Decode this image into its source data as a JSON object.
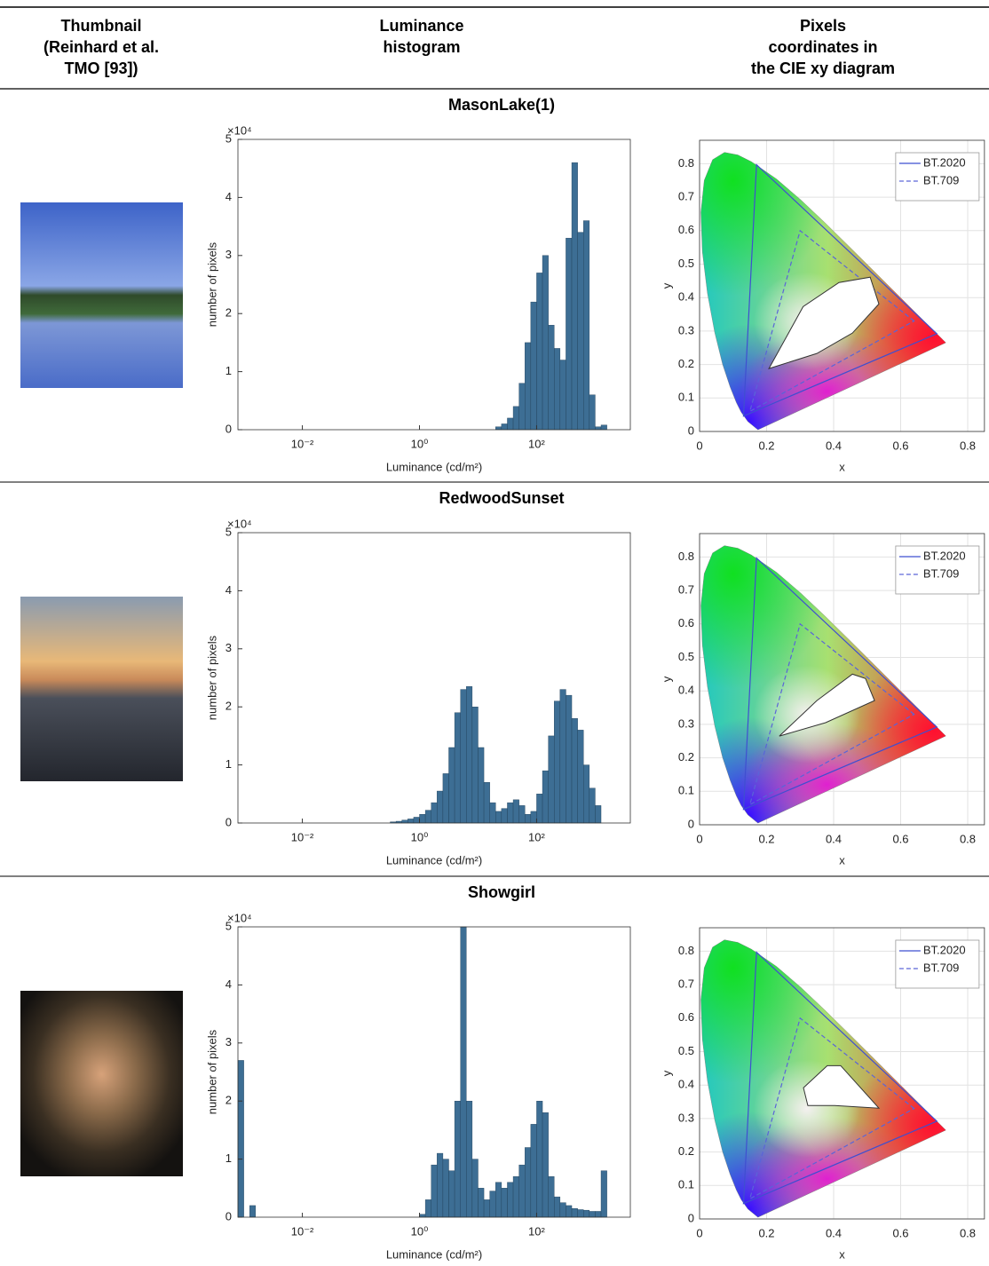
{
  "header": [
    [
      "Thumbnail",
      "(Reinhard et al.",
      "TMO [93])"
    ],
    [
      "Luminance",
      "histogram"
    ],
    [
      "Pixels",
      "coordinates in",
      "the CIE xy diagram"
    ]
  ],
  "rows": [
    {
      "title": "MasonLake(1)",
      "histogram": {
        "type": "histogram",
        "y_multiplier": "×10⁴",
        "xlabel": "Luminance (cd/m²)",
        "ylabel": "number of pixels",
        "log_x": true,
        "color": "#3d6e94",
        "bins": [
          19.95,
          25.12,
          31.62,
          39.81,
          50.12,
          63.1,
          79.43,
          100,
          125.9,
          158.5,
          199.5,
          251.2,
          316.2,
          398.1,
          501.2,
          631,
          794.3,
          1000,
          1259,
          1585
        ],
        "counts": [
          0.05,
          0.1,
          0.2,
          0.4,
          0.8,
          1.5,
          2.2,
          2.7,
          3.0,
          1.8,
          1.4,
          1.2,
          3.3,
          4.6,
          3.4,
          3.6,
          0.6,
          0.05,
          0.08
        ],
        "xlim": [
          0.000794,
          3981
        ],
        "ylim": [
          0,
          5
        ],
        "xticks": [
          {
            "value": 0.01,
            "label": "10⁻²"
          },
          {
            "value": 1,
            "label": "10⁰"
          },
          {
            "value": 100,
            "label": "10²"
          }
        ],
        "yticks": [
          0,
          1,
          2,
          3,
          4,
          5
        ]
      },
      "cie": {
        "type": "line",
        "xlabel": "x",
        "ylabel": "y",
        "xlim": [
          0,
          0.85
        ],
        "ylim": [
          0,
          0.87
        ],
        "xticks": [
          0,
          0.2,
          0.4,
          0.6,
          0.8
        ],
        "yticks": [
          0,
          0.1,
          0.2,
          0.3,
          0.4,
          0.5,
          0.6,
          0.7,
          0.8
        ],
        "grid": true,
        "legend": "upper right",
        "locus": {
          "x": [
            0.1741,
            0.144,
            0.1241,
            0.1096,
            0.0913,
            0.0687,
            0.0454,
            0.0235,
            0.0082,
            0.0039,
            0.0139,
            0.0389,
            0.0743,
            0.1142,
            0.1547,
            0.2296,
            0.3016,
            0.3731,
            0.4441,
            0.5125,
            0.5752,
            0.627,
            0.6915,
            0.726,
            0.7347
          ],
          "y": [
            0.005,
            0.0297,
            0.0578,
            0.0868,
            0.1327,
            0.2007,
            0.295,
            0.4127,
            0.5384,
            0.6548,
            0.7502,
            0.812,
            0.8338,
            0.8262,
            0.8059,
            0.7543,
            0.6923,
            0.6245,
            0.5547,
            0.4866,
            0.4242,
            0.3725,
            0.3083,
            0.274,
            0.2653
          ]
        },
        "pixels": {
          "x": [
            0.207,
            0.309,
            0.416,
            0.509,
            0.535,
            0.456,
            0.35
          ],
          "y": [
            0.188,
            0.373,
            0.445,
            0.461,
            0.381,
            0.294,
            0.233
          ]
        },
        "series": [
          {
            "name": "BT.2020",
            "color": "#3f4fd0",
            "style": "solid",
            "x": [
              0.708,
              0.17,
              0.131
            ],
            "y": [
              0.292,
              0.797,
              0.046
            ]
          },
          {
            "name": "BT.709",
            "color": "#5a64d8",
            "style": "dashed",
            "x": [
              0.64,
              0.3,
              0.15
            ],
            "y": [
              0.33,
              0.6,
              0.06
            ]
          }
        ]
      }
    },
    {
      "title": "RedwoodSunset",
      "histogram": {
        "type": "histogram",
        "y_multiplier": "×10⁴",
        "xlabel": "Luminance (cd/m²)",
        "ylabel": "number of pixels",
        "log_x": true,
        "color": "#3d6e94",
        "bins": [
          0.3162,
          0.3981,
          0.5012,
          0.631,
          0.7943,
          1,
          1.259,
          1.585,
          1.995,
          2.512,
          3.162,
          3.981,
          5.012,
          6.31,
          7.943,
          10,
          12.59,
          15.85,
          19.95,
          25.12,
          31.62,
          39.81,
          50.12,
          63.1,
          79.43,
          100,
          125.9,
          158.5,
          199.5,
          251.2,
          316.2,
          398.1,
          501.2,
          631,
          794.3,
          1000,
          1259
        ],
        "counts": [
          0.02,
          0.03,
          0.05,
          0.07,
          0.1,
          0.15,
          0.22,
          0.35,
          0.55,
          0.85,
          1.3,
          1.9,
          2.3,
          2.35,
          2.0,
          1.3,
          0.7,
          0.35,
          0.2,
          0.25,
          0.35,
          0.4,
          0.3,
          0.15,
          0.2,
          0.5,
          0.9,
          1.5,
          2.1,
          2.3,
          2.2,
          1.8,
          1.6,
          1.0,
          0.6,
          0.3
        ],
        "xlim": [
          0.000794,
          3981
        ],
        "ylim": [
          0,
          5
        ],
        "xticks": [
          {
            "value": 0.01,
            "label": "10⁻²"
          },
          {
            "value": 1,
            "label": "10⁰"
          },
          {
            "value": 100,
            "label": "10²"
          }
        ],
        "yticks": [
          0,
          1,
          2,
          3,
          4,
          5
        ]
      },
      "cie": {
        "type": "line",
        "xlabel": "x",
        "ylabel": "y",
        "xlim": [
          0,
          0.85
        ],
        "ylim": [
          0,
          0.87
        ],
        "xticks": [
          0,
          0.2,
          0.4,
          0.6,
          0.8
        ],
        "yticks": [
          0,
          0.1,
          0.2,
          0.3,
          0.4,
          0.5,
          0.6,
          0.7,
          0.8
        ],
        "grid": true,
        "legend": "upper right",
        "locus": {
          "x": [
            0.1741,
            0.144,
            0.1241,
            0.1096,
            0.0913,
            0.0687,
            0.0454,
            0.0235,
            0.0082,
            0.0039,
            0.0139,
            0.0389,
            0.0743,
            0.1142,
            0.1547,
            0.2296,
            0.3016,
            0.3731,
            0.4441,
            0.5125,
            0.5752,
            0.627,
            0.6915,
            0.726,
            0.7347
          ],
          "y": [
            0.005,
            0.0297,
            0.0578,
            0.0868,
            0.1327,
            0.2007,
            0.295,
            0.4127,
            0.5384,
            0.6548,
            0.7502,
            0.812,
            0.8338,
            0.8262,
            0.8059,
            0.7543,
            0.6923,
            0.6245,
            0.5547,
            0.4866,
            0.4242,
            0.3725,
            0.3083,
            0.274,
            0.2653
          ]
        },
        "pixels": {
          "x": [
            0.238,
            0.35,
            0.456,
            0.495,
            0.522,
            0.376
          ],
          "y": [
            0.265,
            0.371,
            0.45,
            0.437,
            0.371,
            0.305
          ]
        },
        "series": [
          {
            "name": "BT.2020",
            "color": "#3f4fd0",
            "style": "solid",
            "x": [
              0.708,
              0.17,
              0.131
            ],
            "y": [
              0.292,
              0.797,
              0.046
            ]
          },
          {
            "name": "BT.709",
            "color": "#5a64d8",
            "style": "dashed",
            "x": [
              0.64,
              0.3,
              0.15
            ],
            "y": [
              0.33,
              0.6,
              0.06
            ]
          }
        ]
      }
    },
    {
      "title": "Showgirl",
      "histogram": {
        "type": "histogram",
        "y_multiplier": "×10⁴",
        "xlabel": "Luminance (cd/m²)",
        "ylabel": "number of pixels",
        "log_x": true,
        "color": "#3d6e94",
        "bins": [
          0.000794,
          0.001,
          0.001259,
          0.001585,
          1,
          1.259,
          1.585,
          1.995,
          2.512,
          3.162,
          3.981,
          5.012,
          6.31,
          7.943,
          10,
          12.59,
          15.85,
          19.95,
          25.12,
          31.62,
          39.81,
          50.12,
          63.1,
          79.43,
          100,
          125.9,
          158.5,
          199.5,
          251.2,
          316.2,
          398.1,
          501.2,
          631,
          794.3,
          1000,
          1259,
          1585
        ],
        "counts": [
          2.7,
          0,
          0.2,
          0,
          0.05,
          0.3,
          0.9,
          1.1,
          1.0,
          0.8,
          2.0,
          5.0,
          2.0,
          1.0,
          0.5,
          0.3,
          0.45,
          0.6,
          0.5,
          0.6,
          0.7,
          0.9,
          1.2,
          1.6,
          2.0,
          1.8,
          0.7,
          0.35,
          0.25,
          0.2,
          0.15,
          0.13,
          0.12,
          0.1,
          0.1,
          0.8
        ],
        "xlim": [
          0.000794,
          3981
        ],
        "ylim": [
          0,
          5
        ],
        "xticks": [
          {
            "value": 0.01,
            "label": "10⁻²"
          },
          {
            "value": 1,
            "label": "10⁰"
          },
          {
            "value": 100,
            "label": "10²"
          }
        ],
        "yticks": [
          0,
          1,
          2,
          3,
          4,
          5
        ]
      },
      "cie": {
        "type": "line",
        "xlabel": "x",
        "ylabel": "y",
        "xlim": [
          0,
          0.85
        ],
        "ylim": [
          0,
          0.87
        ],
        "xticks": [
          0,
          0.2,
          0.4,
          0.6,
          0.8
        ],
        "yticks": [
          0,
          0.1,
          0.2,
          0.3,
          0.4,
          0.5,
          0.6,
          0.7,
          0.8
        ],
        "grid": true,
        "legend": "upper right",
        "locus": {
          "x": [
            0.1741,
            0.144,
            0.1241,
            0.1096,
            0.0913,
            0.0687,
            0.0454,
            0.0235,
            0.0082,
            0.0039,
            0.0139,
            0.0389,
            0.0743,
            0.1142,
            0.1547,
            0.2296,
            0.3016,
            0.3731,
            0.4441,
            0.5125,
            0.5752,
            0.627,
            0.6915,
            0.726,
            0.7347
          ],
          "y": [
            0.005,
            0.0297,
            0.0578,
            0.0868,
            0.1327,
            0.2007,
            0.295,
            0.4127,
            0.5384,
            0.6548,
            0.7502,
            0.812,
            0.8338,
            0.8262,
            0.8059,
            0.7543,
            0.6923,
            0.6245,
            0.5547,
            0.4866,
            0.4242,
            0.3725,
            0.3083,
            0.274,
            0.2653
          ]
        },
        "pixels": {
          "x": [
            0.31,
            0.381,
            0.421,
            0.535,
            0.403,
            0.323
          ],
          "y": [
            0.392,
            0.458,
            0.458,
            0.331,
            0.339,
            0.339
          ]
        },
        "series": [
          {
            "name": "BT.2020",
            "color": "#3f4fd0",
            "style": "solid",
            "x": [
              0.708,
              0.17,
              0.131
            ],
            "y": [
              0.292,
              0.797,
              0.046
            ]
          },
          {
            "name": "BT.709",
            "color": "#5a64d8",
            "style": "dashed",
            "x": [
              0.64,
              0.3,
              0.15
            ],
            "y": [
              0.33,
              0.6,
              0.06
            ]
          }
        ]
      }
    }
  ]
}
